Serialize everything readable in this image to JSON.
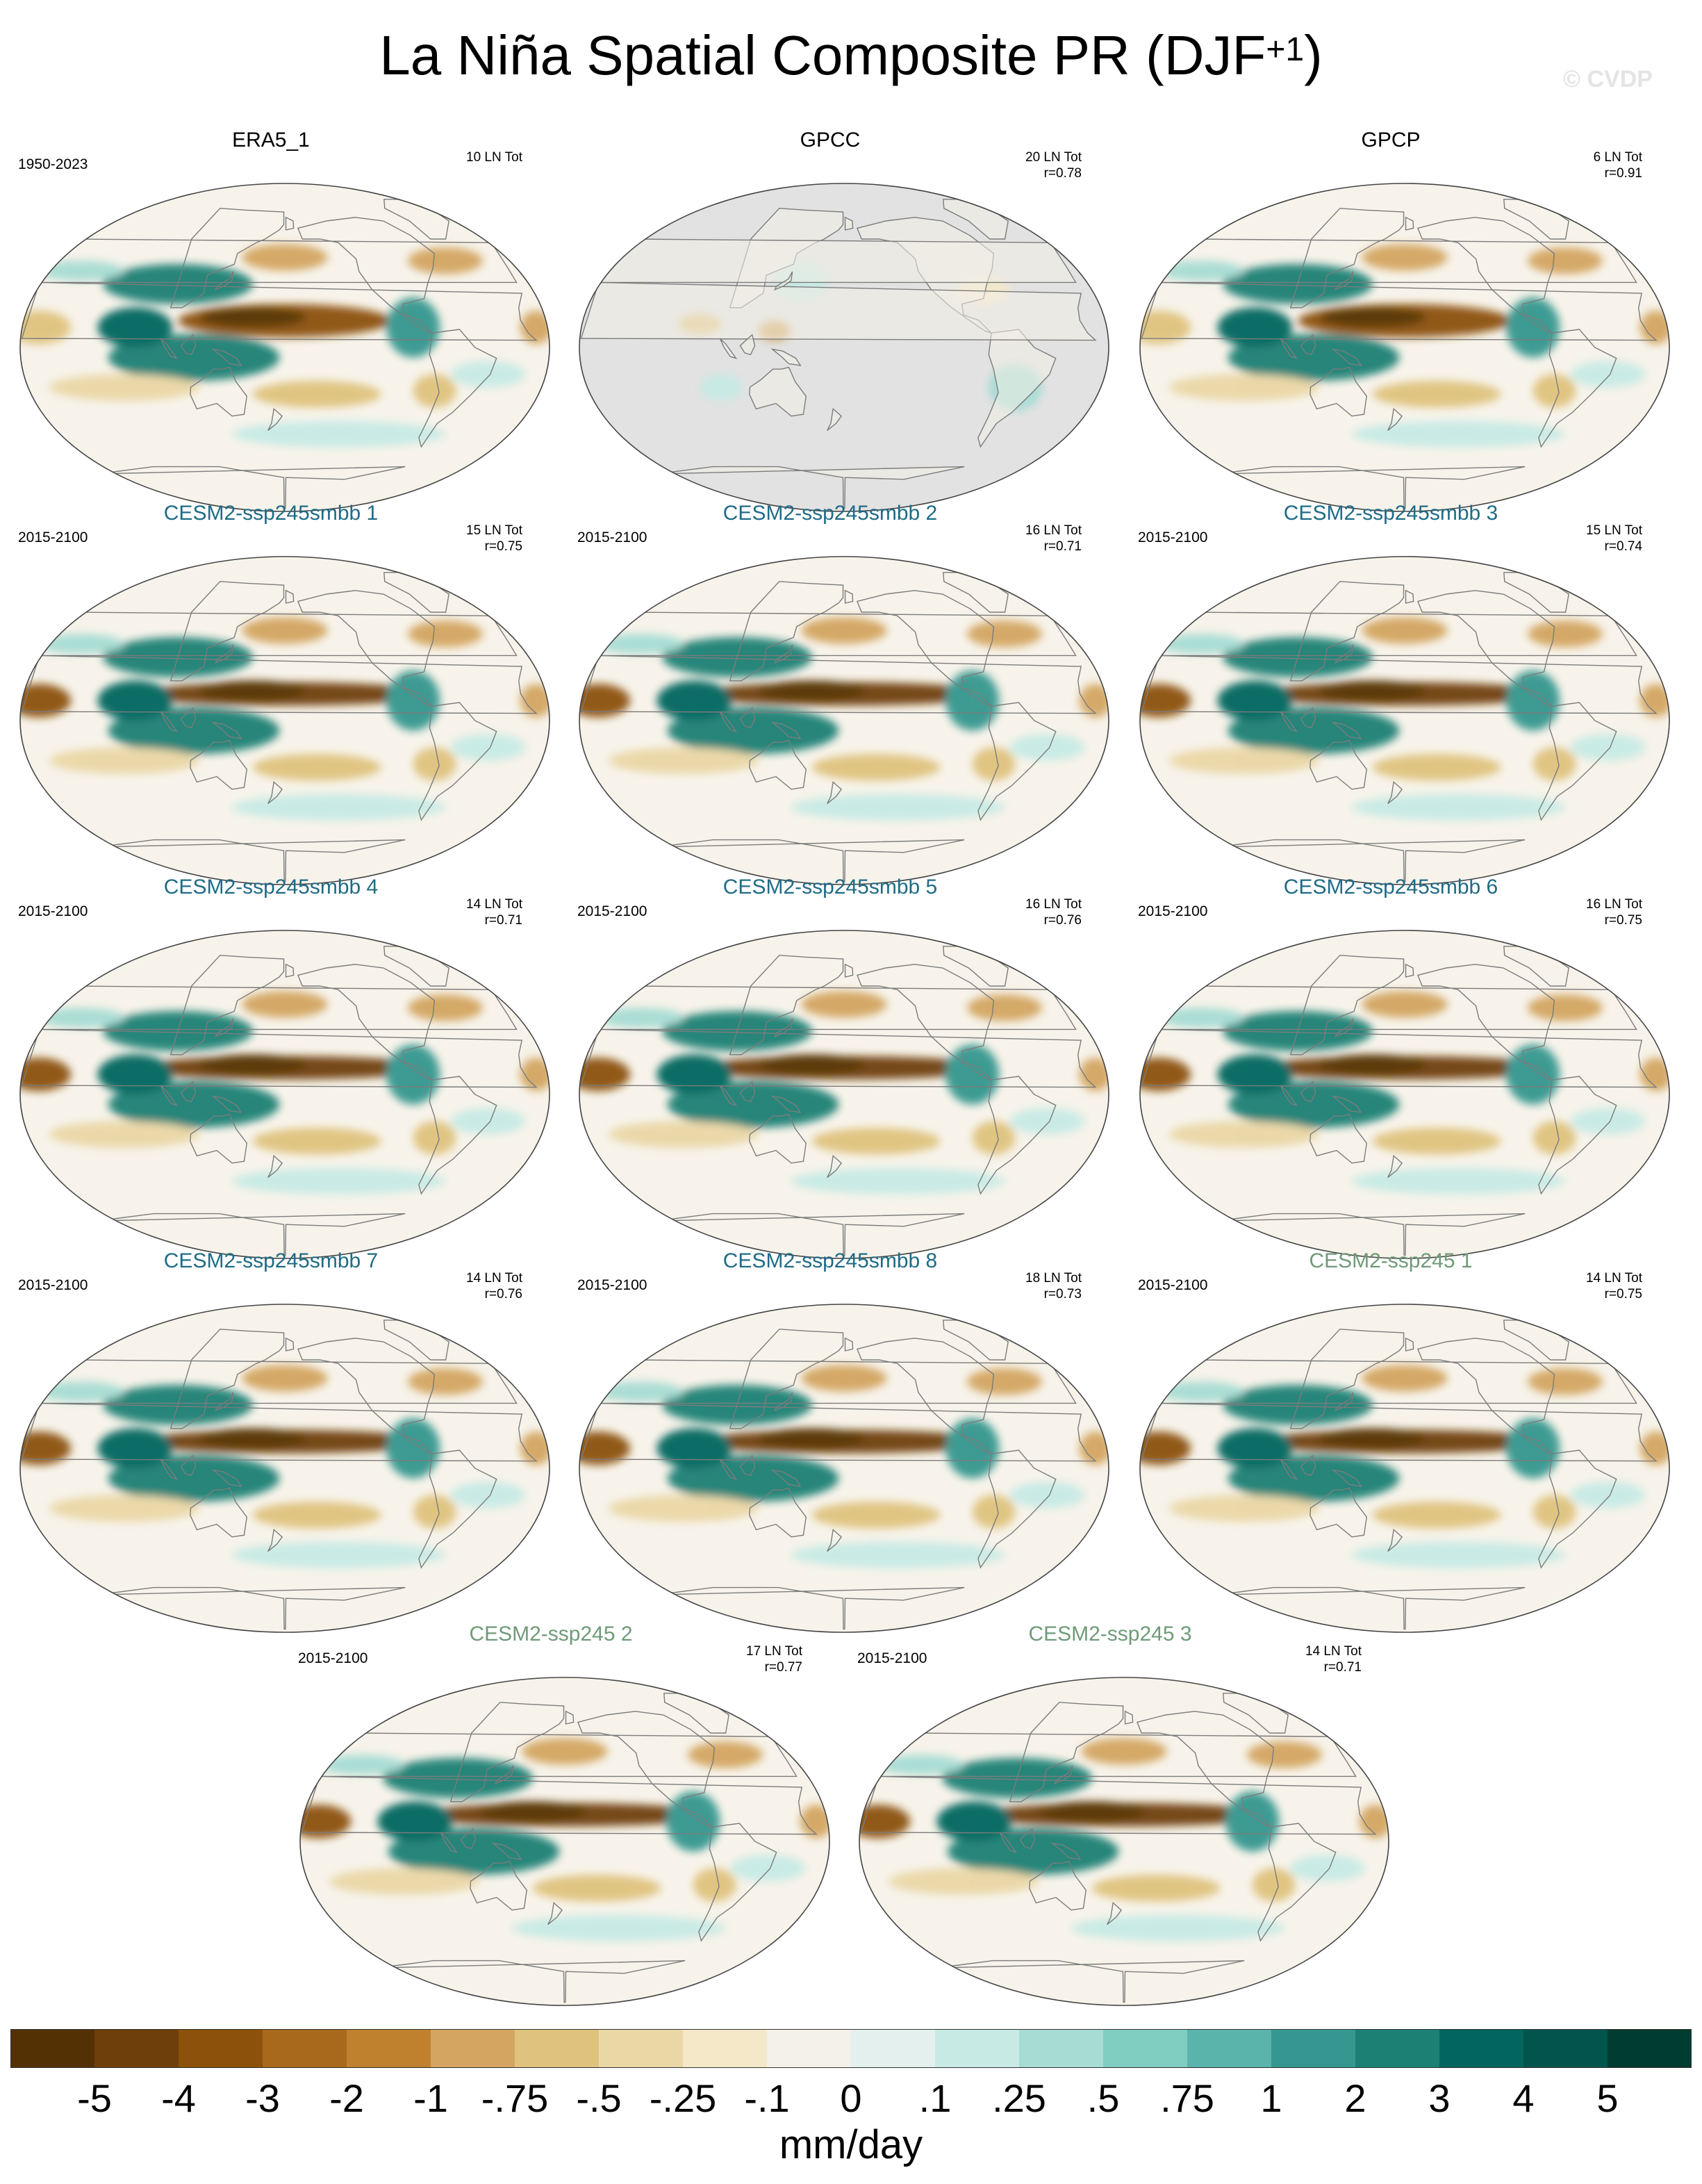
{
  "figure": {
    "title": "La Niña Spatial Composite PR (DJF",
    "title_superscript": "+1",
    "title_close": ")",
    "watermark": "© CVDP"
  },
  "panels": [
    {
      "title": "ERA5_1",
      "title_color": "#000000",
      "period": "1950-2023",
      "count": "10 LN Tot",
      "r": "",
      "variant": "obs_full"
    },
    {
      "title": "GPCC",
      "title_color": "#000000",
      "period": "",
      "count": "20 LN Tot",
      "r": "r=0.78",
      "variant": "land_only"
    },
    {
      "title": "GPCP",
      "title_color": "#000000",
      "period": "",
      "count": "6 LN Tot",
      "r": "r=0.91",
      "variant": "obs_full"
    },
    {
      "title": "CESM2-ssp245smbb 1",
      "title_color": "#1f6b86",
      "period": "2015-2100",
      "count": "15 LN Tot",
      "r": "r=0.75",
      "variant": "model"
    },
    {
      "title": "CESM2-ssp245smbb 2",
      "title_color": "#1f6b86",
      "period": "2015-2100",
      "count": "16 LN Tot",
      "r": "r=0.71",
      "variant": "model"
    },
    {
      "title": "CESM2-ssp245smbb 3",
      "title_color": "#1f6b86",
      "period": "2015-2100",
      "count": "15 LN Tot",
      "r": "r=0.74",
      "variant": "model"
    },
    {
      "title": "CESM2-ssp245smbb 4",
      "title_color": "#1f6b86",
      "period": "2015-2100",
      "count": "14 LN Tot",
      "r": "r=0.71",
      "variant": "model"
    },
    {
      "title": "CESM2-ssp245smbb 5",
      "title_color": "#1f6b86",
      "period": "2015-2100",
      "count": "16 LN Tot",
      "r": "r=0.76",
      "variant": "model"
    },
    {
      "title": "CESM2-ssp245smbb 6",
      "title_color": "#1f6b86",
      "period": "2015-2100",
      "count": "16 LN Tot",
      "r": "r=0.75",
      "variant": "model"
    },
    {
      "title": "CESM2-ssp245smbb 7",
      "title_color": "#1f6b86",
      "period": "2015-2100",
      "count": "14 LN Tot",
      "r": "r=0.76",
      "variant": "model"
    },
    {
      "title": "CESM2-ssp245smbb 8",
      "title_color": "#1f6b86",
      "period": "2015-2100",
      "count": "18 LN Tot",
      "r": "r=0.73",
      "variant": "model"
    },
    {
      "title": "CESM2-ssp245 1",
      "title_color": "#6f9a78",
      "period": "2015-2100",
      "count": "14 LN Tot",
      "r": "r=0.75",
      "variant": "model"
    },
    {
      "title": "CESM2-ssp245 2",
      "title_color": "#6f9a78",
      "period": "2015-2100",
      "count": "17 LN Tot",
      "r": "r=0.77",
      "variant": "model"
    },
    {
      "title": "CESM2-ssp245 3",
      "title_color": "#6f9a78",
      "period": "2015-2100",
      "count": "14 LN Tot",
      "r": "r=0.71",
      "variant": "model"
    }
  ],
  "colorbar": {
    "colors": [
      "#543005",
      "#6f3f0b",
      "#8c510a",
      "#a9691d",
      "#bf812d",
      "#d3a561",
      "#dfc27d",
      "#ead7a6",
      "#f4e8c8",
      "#f4f1ea",
      "#e3f0ee",
      "#c7eae5",
      "#a6dcd3",
      "#80cdc1",
      "#5ab4ac",
      "#35978f",
      "#1d8075",
      "#01665e",
      "#01554c",
      "#003c30"
    ],
    "labels": [
      "-5",
      "-4",
      "-3",
      "-2",
      "-1",
      "-.75",
      "-.5",
      "-.25",
      "-.1",
      "0",
      ".1",
      ".25",
      ".5",
      ".75",
      "1",
      "2",
      "3",
      "4",
      "5"
    ],
    "units": "mm/day"
  },
  "map_colors": {
    "ocean_background": "#f7f3ea",
    "masked_gray": "#e2e2e2",
    "coastline": "#7c7c7c"
  }
}
